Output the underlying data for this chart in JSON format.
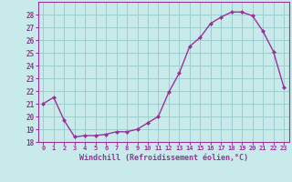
{
  "x": [
    0,
    1,
    2,
    3,
    4,
    5,
    6,
    7,
    8,
    9,
    10,
    11,
    12,
    13,
    14,
    15,
    16,
    17,
    18,
    19,
    20,
    21,
    22,
    23
  ],
  "y": [
    21.0,
    21.5,
    19.7,
    18.4,
    18.5,
    18.5,
    18.6,
    18.8,
    18.8,
    19.0,
    19.5,
    20.0,
    21.9,
    23.4,
    25.5,
    26.2,
    27.3,
    27.8,
    28.2,
    28.2,
    27.9,
    26.7,
    25.1,
    22.3
  ],
  "ylim": [
    18,
    29
  ],
  "yticks": [
    18,
    19,
    20,
    21,
    22,
    23,
    24,
    25,
    26,
    27,
    28
  ],
  "xlabel": "Windchill (Refroidissement éolien,°C)",
  "line_color": "#993399",
  "marker_color": "#993399",
  "bg_color": "#c8eaea",
  "grid_color": "#9ecece",
  "axis_color": "#993399",
  "tick_color": "#993399",
  "label_color": "#993399"
}
